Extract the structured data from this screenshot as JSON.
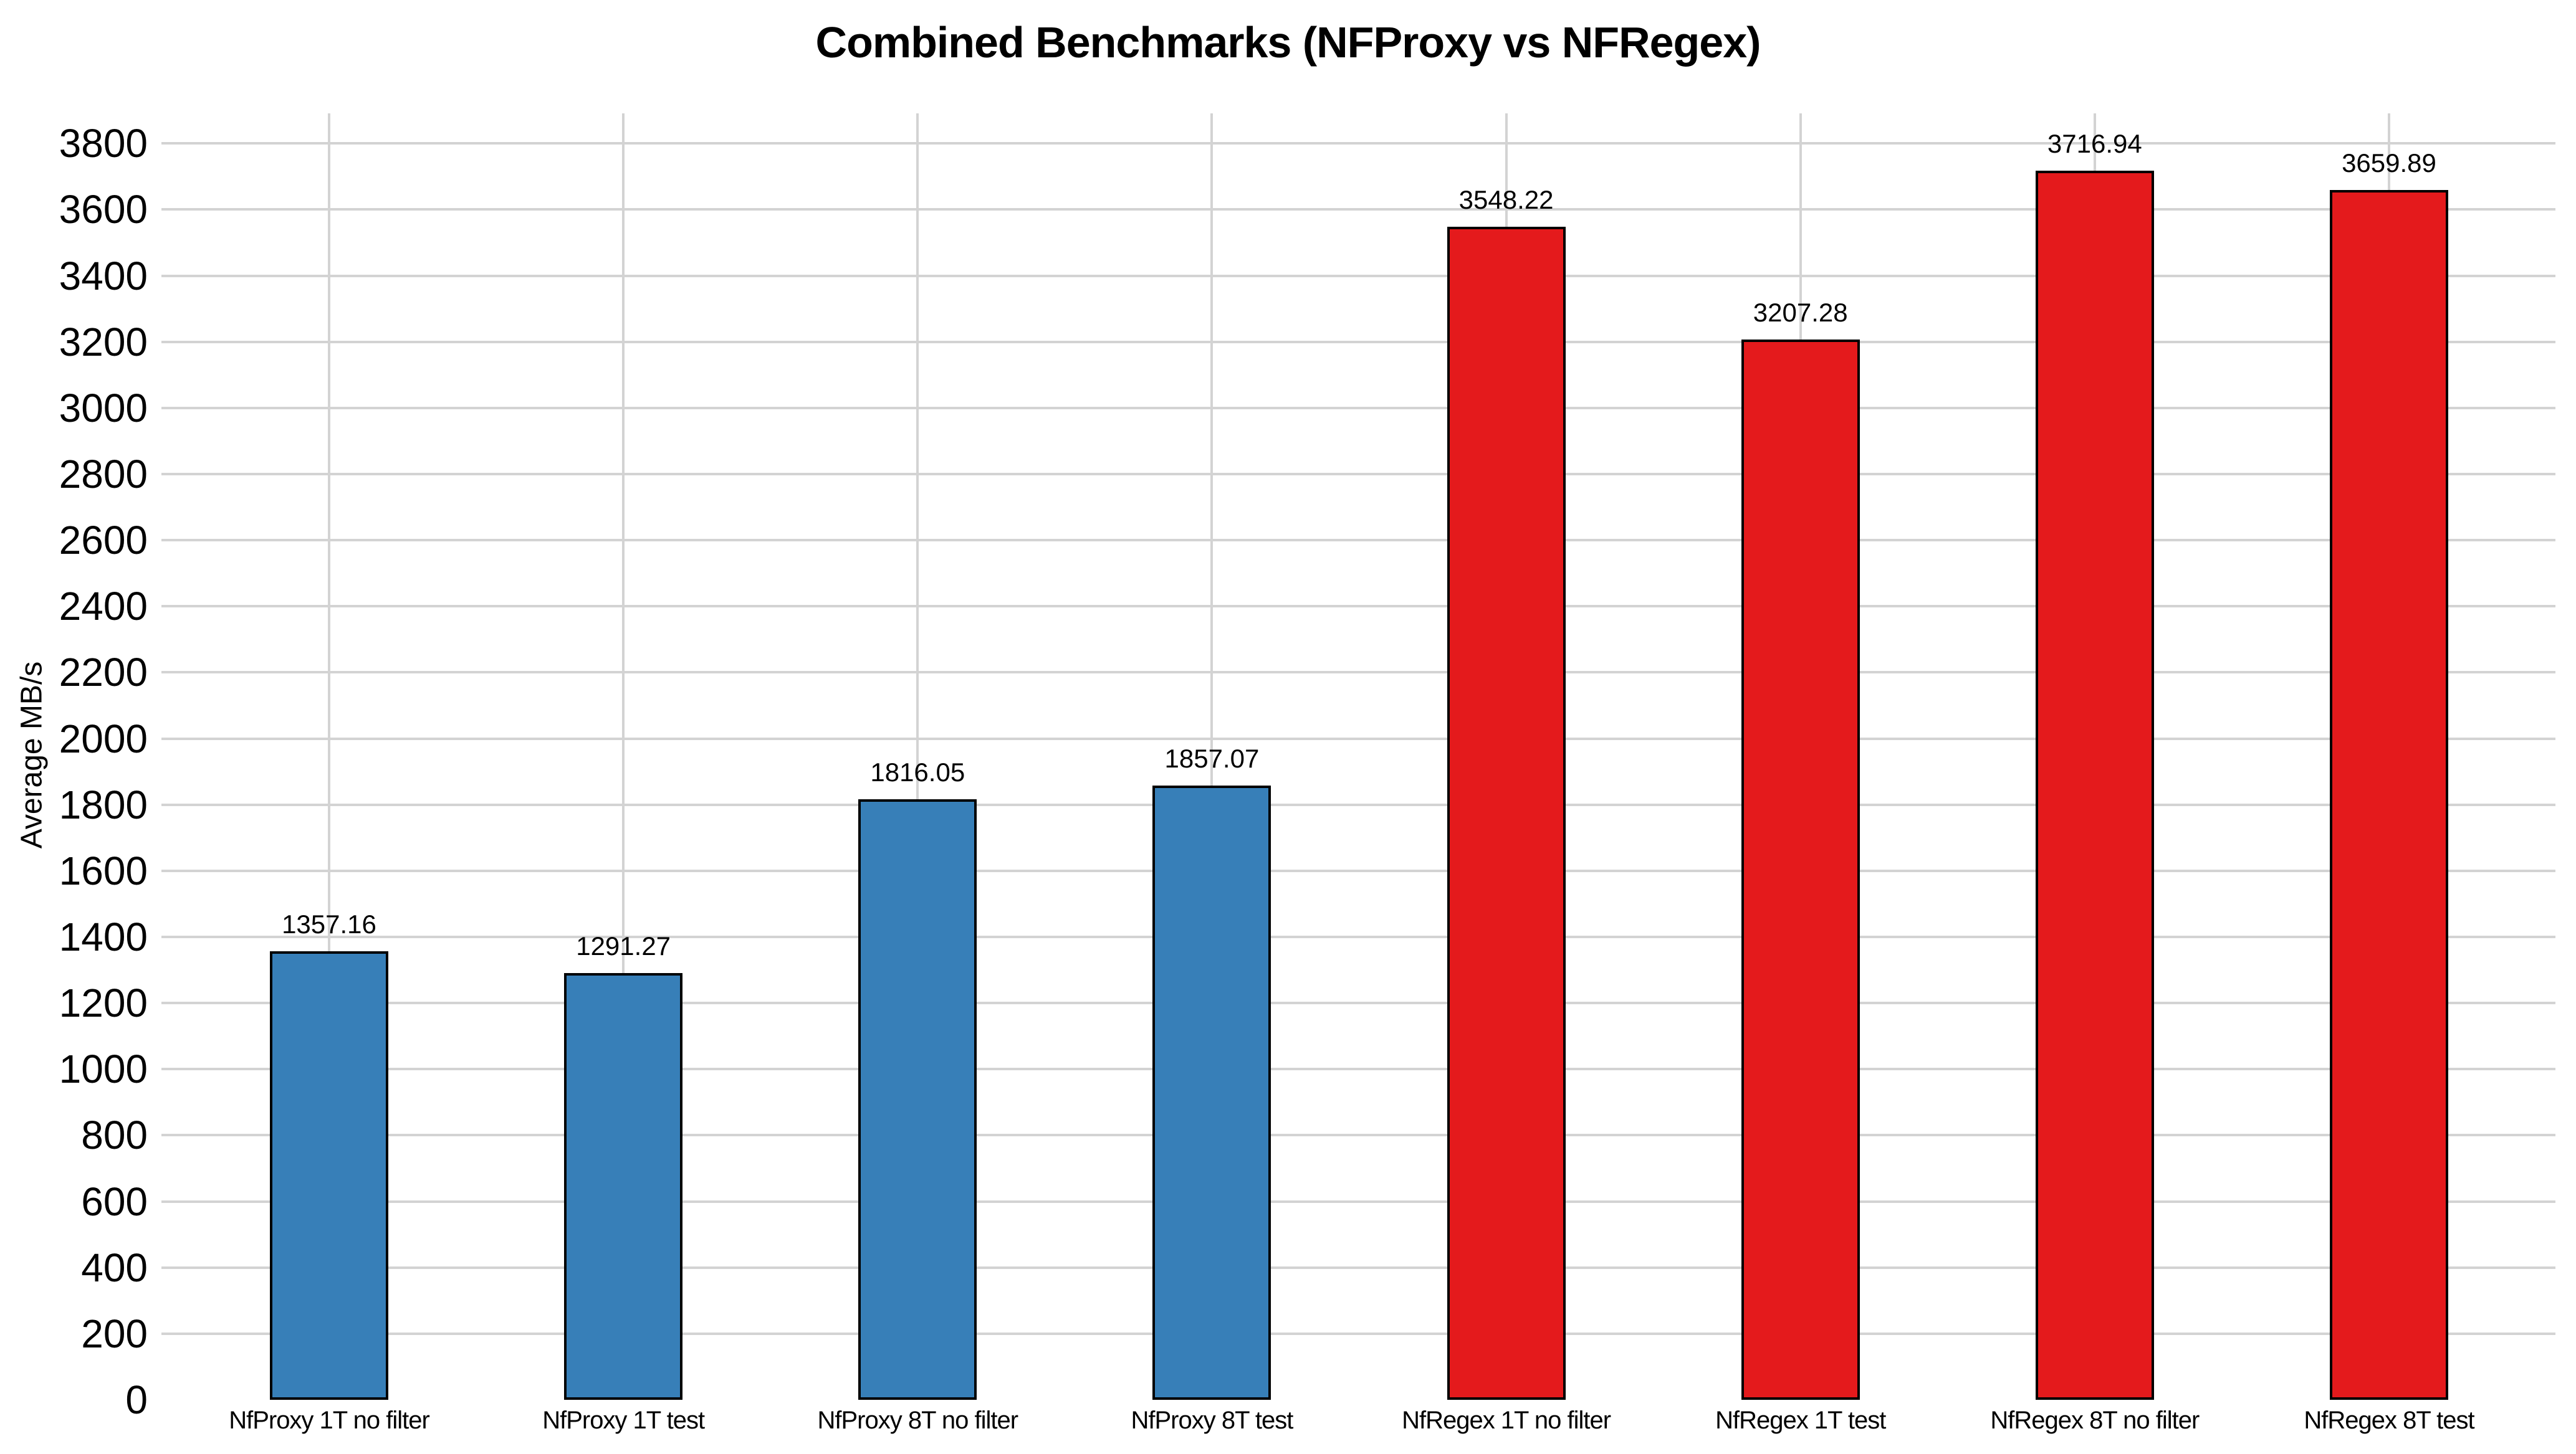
{
  "chart_data": {
    "type": "bar",
    "title": "Combined Benchmarks (NFProxy vs NFRegex)",
    "ylabel": "Average MB/s",
    "xlabel": "",
    "categories": [
      "NfProxy 1T no filter",
      "NfProxy 1T test",
      "NfProxy 8T no filter",
      "NfProxy 8T test",
      "NfRegex 1T no filter",
      "NfRegex 1T test",
      "NfRegex 8T no filter",
      "NfRegex 8T test"
    ],
    "values": [
      1357.16,
      1291.27,
      1816.05,
      1857.07,
      3548.22,
      3207.28,
      3716.94,
      3659.89
    ],
    "value_labels": [
      "1357.16",
      "1291.27",
      "1816.05",
      "1857.07",
      "3548.22",
      "3207.28",
      "3716.94",
      "3659.89"
    ],
    "series": [
      {
        "name": "NFProxy",
        "color": "#377fb8",
        "indices": [
          0,
          1,
          2,
          3
        ]
      },
      {
        "name": "NFRegex",
        "color": "#e41a1c",
        "indices": [
          4,
          5,
          6,
          7
        ]
      }
    ],
    "bar_colors": [
      "#377fb8",
      "#377fb8",
      "#377fb8",
      "#377fb8",
      "#e41a1c",
      "#e41a1c",
      "#e41a1c",
      "#e41a1c"
    ],
    "bar_edge_color": "#000000",
    "y_ticks": [
      0,
      200,
      400,
      600,
      800,
      1000,
      1200,
      1400,
      1600,
      1800,
      2000,
      2200,
      2400,
      2600,
      2800,
      3000,
      3200,
      3400,
      3600,
      3800
    ],
    "ylim": [
      0,
      3890
    ],
    "grid": true,
    "grid_color": "#d3d3d3",
    "legend": "none",
    "value_labels_shown": true
  }
}
